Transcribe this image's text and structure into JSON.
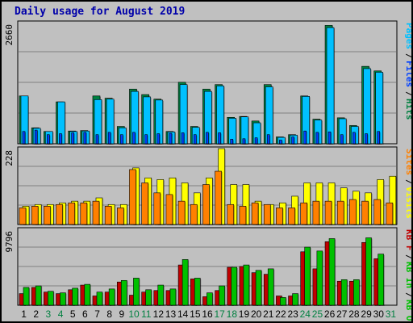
{
  "title": "Daily usage for August 2019",
  "colors": {
    "background": "#c0c0c0",
    "panel": "#c0c0c0",
    "grid": "#808080",
    "title": "#0000aa",
    "hits": "#008040",
    "files": "#00c0ff",
    "pages": "#0040ff",
    "visits": "#ffff00",
    "sites": "#ff8000",
    "kb_in": "#00c000",
    "kb_out": "#c00000",
    "weekday_label": "#000000",
    "weekend_label": "#008040"
  },
  "chart_data": [
    {
      "type": "bar",
      "ymax_label": "2660",
      "ylim": [
        0,
        2660
      ],
      "legend": [
        {
          "name": "Pages",
          "color": "#00c0ff"
        },
        {
          "name": "Files",
          "color": "#0040ff"
        },
        {
          "name": "Hits",
          "color": "#008040"
        }
      ],
      "x": [
        1,
        2,
        3,
        4,
        5,
        6,
        7,
        8,
        9,
        10,
        11,
        12,
        13,
        14,
        15,
        16,
        17,
        18,
        19,
        20,
        21,
        22,
        23,
        24,
        25,
        26,
        27,
        28,
        29,
        30,
        31
      ],
      "series": [
        {
          "name": "Hits",
          "values": [
            1050,
            350,
            270,
            920,
            280,
            290,
            1050,
            1000,
            380,
            1200,
            1080,
            980,
            270,
            1350,
            380,
            1200,
            1300,
            580,
            600,
            500,
            1300,
            150,
            200,
            1050,
            540,
            2600,
            570,
            400,
            1700,
            1600,
            0
          ]
        },
        {
          "name": "Files",
          "values": [
            1050,
            340,
            270,
            920,
            270,
            280,
            970,
            980,
            350,
            1150,
            1030,
            960,
            260,
            1300,
            360,
            1150,
            1270,
            560,
            590,
            460,
            1250,
            140,
            190,
            1040,
            520,
            2550,
            550,
            380,
            1650,
            1570,
            0
          ]
        },
        {
          "name": "Pages",
          "values": [
            270,
            300,
            200,
            220,
            240,
            250,
            200,
            250,
            200,
            250,
            200,
            220,
            230,
            240,
            200,
            250,
            240,
            100,
            110,
            130,
            200,
            80,
            150,
            280,
            250,
            260,
            200,
            250,
            220,
            270,
            0
          ]
        }
      ]
    },
    {
      "type": "bar",
      "ymax_label": "228",
      "ylim": [
        0,
        228
      ],
      "legend": [
        {
          "name": "Sites",
          "color": "#ff8000"
        },
        {
          "name": "Visits",
          "color": "#ffff00"
        }
      ],
      "x": [
        1,
        2,
        3,
        4,
        5,
        6,
        7,
        8,
        9,
        10,
        11,
        12,
        13,
        14,
        15,
        16,
        17,
        18,
        19,
        20,
        21,
        22,
        23,
        24,
        25,
        26,
        27,
        28,
        29,
        30,
        31
      ],
      "series": [
        {
          "name": "Visits",
          "values": [
            55,
            60,
            60,
            65,
            70,
            70,
            80,
            60,
            60,
            170,
            140,
            135,
            140,
            125,
            95,
            140,
            228,
            120,
            120,
            70,
            60,
            65,
            85,
            125,
            125,
            125,
            110,
            100,
            95,
            135,
            145
          ]
        },
        {
          "name": "Sites",
          "values": [
            50,
            55,
            55,
            60,
            65,
            65,
            70,
            55,
            50,
            165,
            125,
            95,
            90,
            70,
            60,
            120,
            160,
            60,
            55,
            65,
            60,
            50,
            50,
            65,
            70,
            70,
            70,
            75,
            70,
            75,
            65
          ]
        }
      ]
    },
    {
      "type": "bar",
      "ymax_label": "9796",
      "ylim": [
        0,
        9796
      ],
      "legend": [
        {
          "name": "KB F",
          "color": "#c00000"
        },
        {
          "name": "KB In",
          "color": "#00c000"
        },
        {
          "name": "KB Out",
          "color": "#00c000"
        }
      ],
      "x": [
        1,
        2,
        3,
        4,
        5,
        6,
        7,
        8,
        9,
        10,
        11,
        12,
        13,
        14,
        15,
        16,
        17,
        18,
        19,
        20,
        21,
        22,
        23,
        24,
        25,
        26,
        27,
        28,
        29,
        30,
        31
      ],
      "series": [
        {
          "name": "KB F",
          "values": [
            1500,
            2300,
            1700,
            1500,
            2000,
            2600,
            1200,
            1700,
            3000,
            1300,
            1700,
            1900,
            1900,
            5200,
            3400,
            1100,
            1900,
            4900,
            5000,
            4200,
            4000,
            1200,
            1200,
            6900,
            4700,
            8200,
            3100,
            3100,
            8100,
            6000,
            0
          ]
        },
        {
          "name": "KB In",
          "values": [
            2300,
            2500,
            1800,
            1600,
            2200,
            2700,
            1700,
            2100,
            3200,
            3500,
            2000,
            2600,
            2100,
            5900,
            3500,
            1600,
            2500,
            4900,
            5200,
            4500,
            4700,
            1000,
            1500,
            7500,
            7000,
            8600,
            3300,
            3300,
            8700,
            6600,
            0
          ]
        }
      ]
    }
  ],
  "day_labels": [
    {
      "text": "1",
      "weekend": false
    },
    {
      "text": "2",
      "weekend": false
    },
    {
      "text": "3",
      "weekend": true
    },
    {
      "text": "4",
      "weekend": true
    },
    {
      "text": "5",
      "weekend": false
    },
    {
      "text": "6",
      "weekend": false
    },
    {
      "text": "7",
      "weekend": false
    },
    {
      "text": "8",
      "weekend": false
    },
    {
      "text": "9",
      "weekend": false
    },
    {
      "text": "10",
      "weekend": true
    },
    {
      "text": "11",
      "weekend": true
    },
    {
      "text": "12",
      "weekend": false
    },
    {
      "text": "13",
      "weekend": false
    },
    {
      "text": "14",
      "weekend": false
    },
    {
      "text": "15",
      "weekend": false
    },
    {
      "text": "16",
      "weekend": false
    },
    {
      "text": "17",
      "weekend": true
    },
    {
      "text": "18",
      "weekend": true
    },
    {
      "text": "19",
      "weekend": false
    },
    {
      "text": "20",
      "weekend": false
    },
    {
      "text": "21",
      "weekend": false
    },
    {
      "text": "22",
      "weekend": false
    },
    {
      "text": "23",
      "weekend": false
    },
    {
      "text": "24",
      "weekend": true
    },
    {
      "text": "25",
      "weekend": true
    },
    {
      "text": "26",
      "weekend": false
    },
    {
      "text": "27",
      "weekend": false
    },
    {
      "text": "28",
      "weekend": false
    },
    {
      "text": "29",
      "weekend": false
    },
    {
      "text": "30",
      "weekend": false
    },
    {
      "text": "31",
      "weekend": true
    }
  ]
}
